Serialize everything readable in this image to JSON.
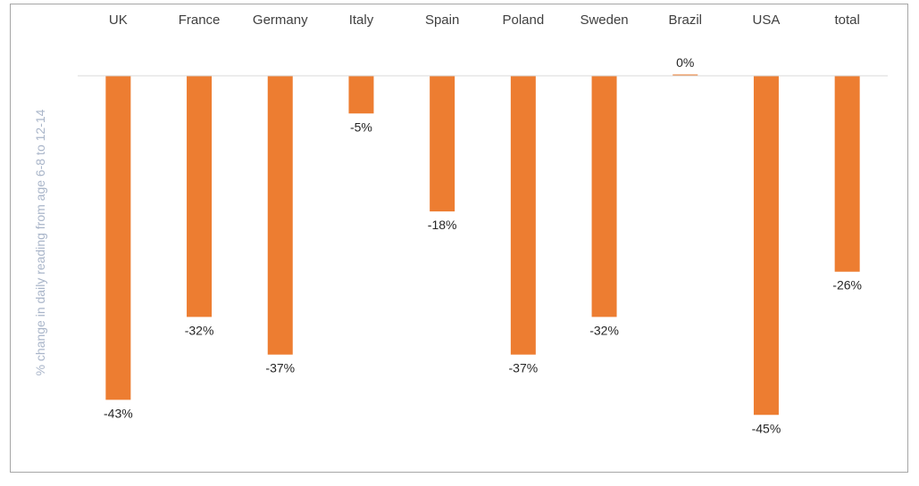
{
  "chart_data": {
    "type": "bar",
    "categories": [
      "UK",
      "France",
      "Germany",
      "Italy",
      "Spain",
      "Poland",
      "Sweden",
      "Brazil",
      "USA",
      "total"
    ],
    "values": [
      -43,
      -32,
      -37,
      -5,
      -18,
      -37,
      -32,
      0,
      -45,
      -26
    ],
    "value_labels": [
      "-43%",
      "-32%",
      "-37%",
      "-5%",
      "-18%",
      "-37%",
      "-32%",
      "0%",
      "-45%",
      "-26%"
    ],
    "title": "",
    "xlabel": "",
    "ylabel": "% change in daily reading from age 6-8 to 12-14",
    "ylim": [
      -50,
      0
    ],
    "grid": false,
    "legend": "none",
    "colors": {
      "bar": "#ed7d31",
      "axis_line": "#d9d9d9",
      "ylabel": "#a9b5c9",
      "frame": "#a6a6a6"
    }
  }
}
